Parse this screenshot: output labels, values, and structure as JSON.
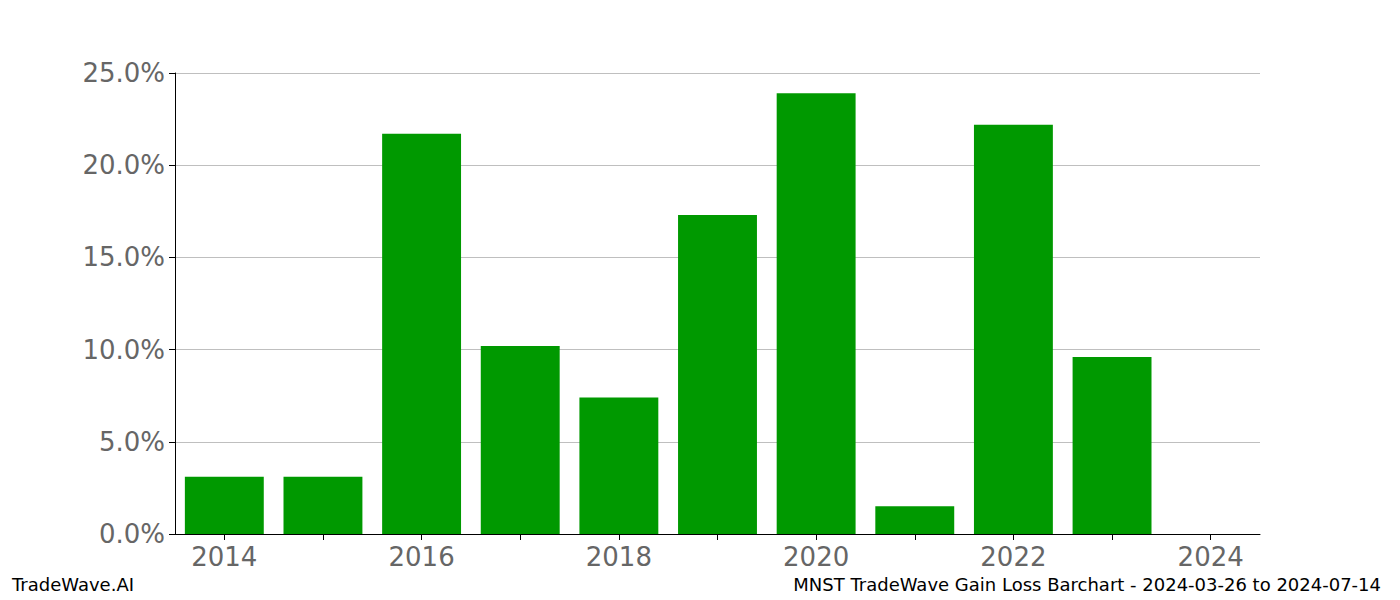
{
  "chart_data": {
    "type": "bar",
    "title": "MNST TradeWave Gain Loss Barchart - 2024-03-26 to 2024-07-14",
    "annotations": [
      "TradeWave.AI"
    ],
    "categories": [
      "2014",
      null,
      "2016",
      null,
      "2018",
      null,
      "2020",
      null,
      "2022",
      null,
      "2024"
    ],
    "values": [
      3.1,
      3.1,
      21.7,
      10.2,
      7.4,
      17.3,
      23.9,
      1.5,
      22.2,
      9.6,
      null
    ],
    "color": "#009900",
    "ylim": [
      0,
      25
    ],
    "yticks": [
      {
        "value": 0,
        "label": "0.0%"
      },
      {
        "value": 5,
        "label": "5.0%"
      },
      {
        "value": 10,
        "label": "10.0%"
      },
      {
        "value": 15,
        "label": "15.0%"
      },
      {
        "value": 20,
        "label": "20.0%"
      },
      {
        "value": 25,
        "label": "25.0%"
      }
    ],
    "grid": true
  }
}
